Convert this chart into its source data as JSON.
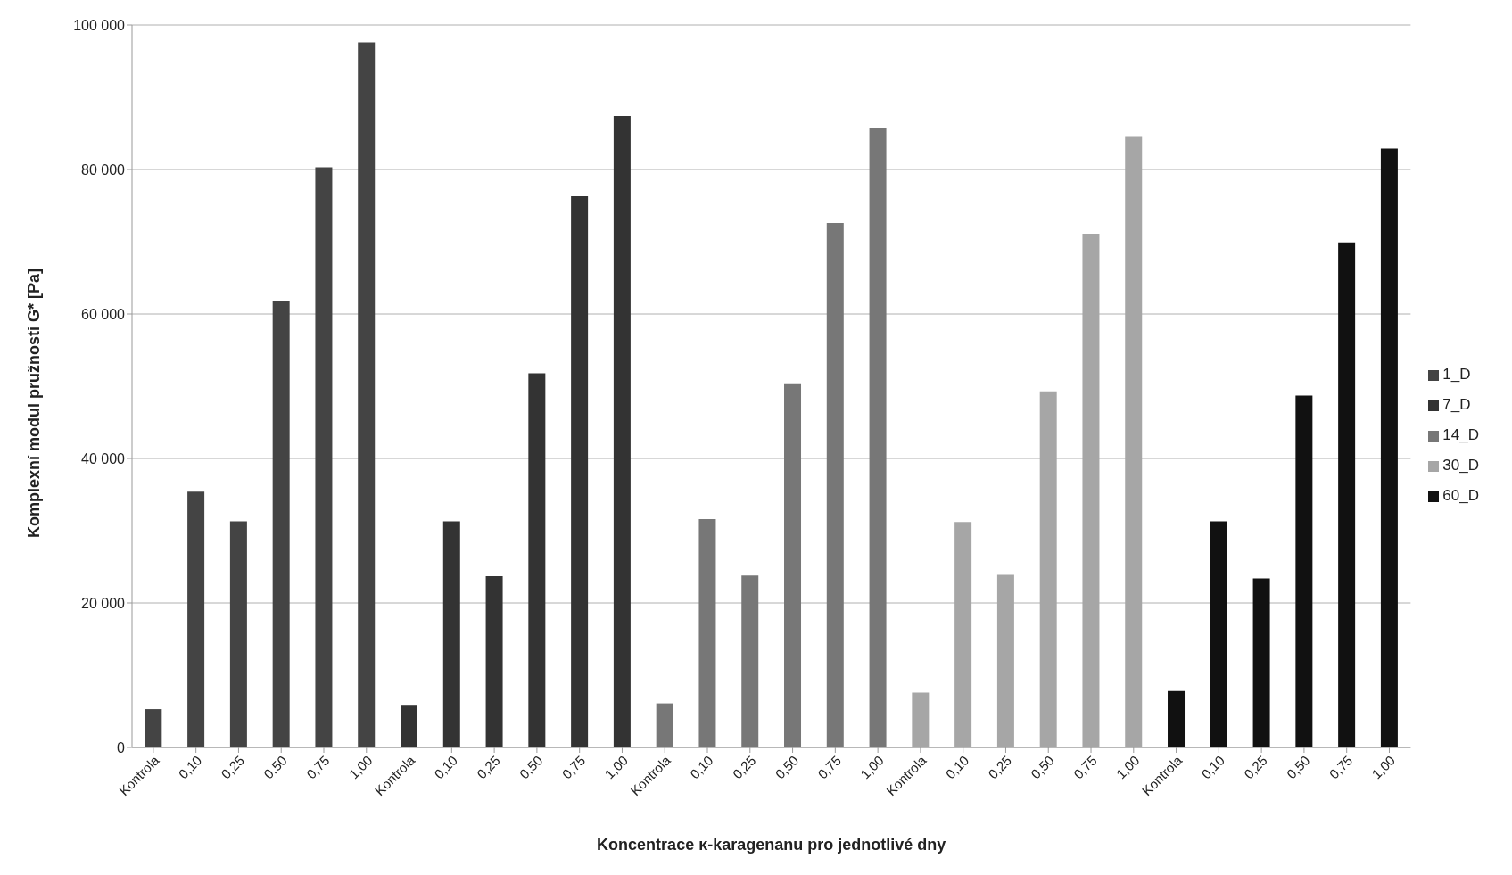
{
  "chart_data": {
    "type": "bar",
    "xlabel": "Koncentrace κ-karagenanu pro jednotlivé dny",
    "ylabel": "Komplexní modul pružnosti G* [Pa]",
    "categories": [
      "Kontrola",
      "0,10",
      "0,25",
      "0,50",
      "0,75",
      "1,00",
      "Kontrola",
      "0,10",
      "0,25",
      "0,50",
      "0,75",
      "1,00",
      "Kontrola",
      "0,10",
      "0,25",
      "0,50",
      "0,75",
      "1,00",
      "Kontrola",
      "0,10",
      "0,25",
      "0,50",
      "0,75",
      "1,00",
      "Kontrola",
      "0,10",
      "0,25",
      "0,50",
      "0,75",
      "1,00"
    ],
    "series": [
      {
        "name": "1_D",
        "color": "#444444",
        "values": [
          5300,
          35400,
          31300,
          61800,
          80300,
          97600,
          null,
          null,
          null,
          null,
          null,
          null,
          null,
          null,
          null,
          null,
          null,
          null,
          null,
          null,
          null,
          null,
          null,
          null,
          null,
          null,
          null,
          null,
          null,
          null
        ]
      },
      {
        "name": "7_D",
        "color": "#333333",
        "values": [
          null,
          null,
          null,
          null,
          null,
          null,
          5900,
          31300,
          23700,
          51800,
          76300,
          87400,
          null,
          null,
          null,
          null,
          null,
          null,
          null,
          null,
          null,
          null,
          null,
          null,
          null,
          null,
          null,
          null,
          null,
          null
        ]
      },
      {
        "name": "14_D",
        "color": "#777777",
        "values": [
          null,
          null,
          null,
          null,
          null,
          null,
          null,
          null,
          null,
          null,
          null,
          null,
          6100,
          31600,
          23800,
          50400,
          72600,
          85700,
          null,
          null,
          null,
          null,
          null,
          null,
          null,
          null,
          null,
          null,
          null,
          null
        ]
      },
      {
        "name": "30_D",
        "color": "#a6a6a6",
        "values": [
          null,
          null,
          null,
          null,
          null,
          null,
          null,
          null,
          null,
          null,
          null,
          null,
          null,
          null,
          null,
          null,
          null,
          null,
          7600,
          31200,
          23900,
          49300,
          71100,
          84500,
          null,
          null,
          null,
          null,
          null,
          null
        ]
      },
      {
        "name": "60_D",
        "color": "#111111",
        "values": [
          null,
          null,
          null,
          null,
          null,
          null,
          null,
          null,
          null,
          null,
          null,
          null,
          null,
          null,
          null,
          null,
          null,
          null,
          null,
          null,
          null,
          null,
          null,
          null,
          7800,
          31300,
          23400,
          48700,
          69900,
          82900
        ]
      }
    ],
    "ylim": [
      0,
      100000
    ],
    "yticks": [
      {
        "value": 0,
        "label": "0"
      },
      {
        "value": 20000,
        "label": "20 000"
      },
      {
        "value": 40000,
        "label": "40 000"
      },
      {
        "value": 60000,
        "label": "60 000"
      },
      {
        "value": 80000,
        "label": "80 000"
      },
      {
        "value": 100000,
        "label": "100 000"
      }
    ],
    "grid": "y",
    "legend": "right"
  }
}
